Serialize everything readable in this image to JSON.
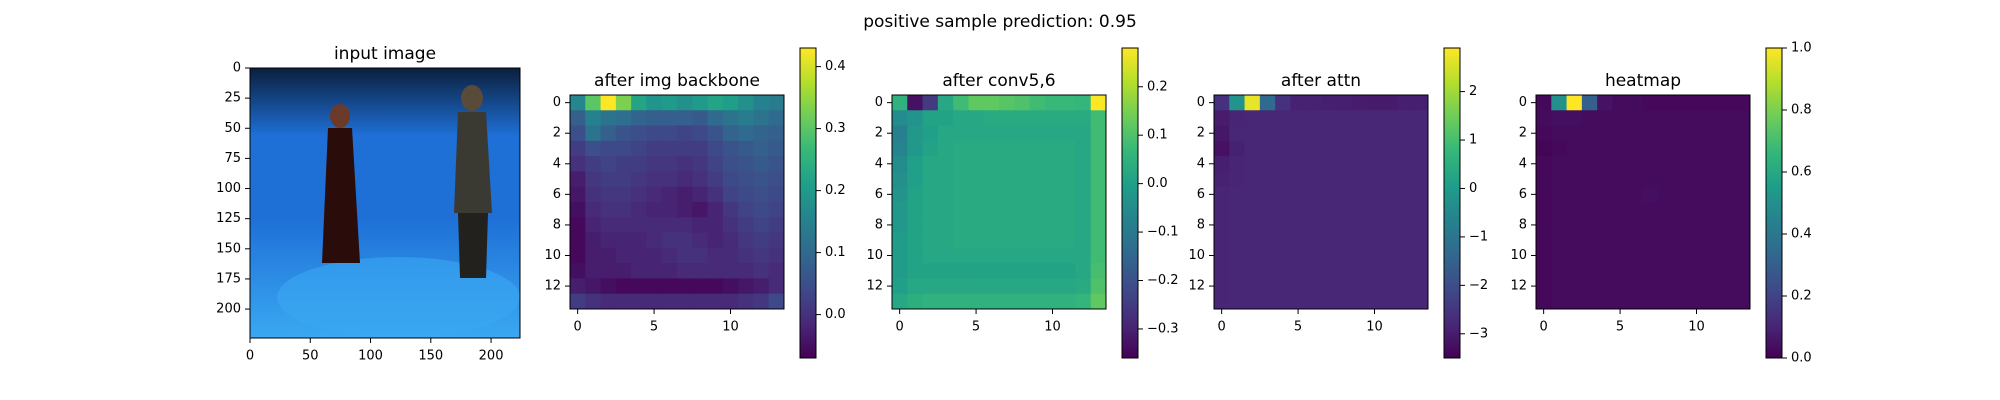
{
  "figure": {
    "suptitle": "positive sample     prediction: 0.95"
  },
  "colormap": "viridis",
  "chart_data": [
    {
      "type": "image",
      "title": "input image",
      "x_ticks": [
        "0",
        "50",
        "100",
        "150",
        "200"
      ],
      "y_ticks": [
        "0",
        "25",
        "50",
        "75",
        "100",
        "125",
        "150",
        "175",
        "200"
      ],
      "xlim": [
        0,
        224
      ],
      "ylim": [
        224,
        0
      ],
      "scene": {
        "background": "#1e6fd6",
        "floor": "#3aa8f2",
        "ceiling": "#0b1f3d"
      }
    },
    {
      "type": "heatmap",
      "title": "after img backbone",
      "x_ticks": [
        "0",
        "5",
        "10"
      ],
      "y_ticks": [
        "0",
        "2",
        "4",
        "6",
        "8",
        "10",
        "12"
      ],
      "colorbar": {
        "vmin": -0.07,
        "vmax": 0.43,
        "ticks": [
          "0.0",
          "0.1",
          "0.2",
          "0.3",
          "0.4"
        ],
        "tick_values": [
          0.0,
          0.1,
          0.2,
          0.3,
          0.4
        ]
      },
      "grid_size": 14,
      "rows": [
        [
          0.16,
          0.3,
          0.43,
          0.33,
          0.22,
          0.19,
          0.2,
          0.18,
          0.2,
          0.22,
          0.21,
          0.18,
          0.15,
          0.14
        ],
        [
          0.08,
          0.15,
          0.12,
          0.11,
          0.09,
          0.08,
          0.08,
          0.08,
          0.07,
          0.1,
          0.12,
          0.14,
          0.12,
          0.1
        ],
        [
          0.05,
          0.12,
          0.08,
          0.06,
          0.05,
          0.04,
          0.04,
          0.03,
          0.04,
          0.06,
          0.09,
          0.1,
          0.09,
          0.08
        ],
        [
          0.02,
          0.05,
          0.04,
          0.04,
          0.03,
          0.02,
          0.02,
          0.02,
          0.02,
          0.04,
          0.06,
          0.07,
          0.08,
          0.07
        ],
        [
          0.0,
          0.02,
          0.03,
          0.02,
          0.02,
          0.01,
          0.01,
          0.0,
          0.01,
          0.03,
          0.05,
          0.06,
          0.07,
          0.06
        ],
        [
          -0.03,
          0.01,
          0.02,
          0.02,
          0.01,
          0.0,
          0.0,
          -0.01,
          0.0,
          0.02,
          0.04,
          0.05,
          0.06,
          0.05
        ],
        [
          -0.04,
          0.0,
          0.01,
          0.01,
          0.0,
          -0.01,
          -0.02,
          -0.03,
          -0.02,
          0.0,
          0.03,
          0.04,
          0.05,
          0.04
        ],
        [
          -0.05,
          -0.01,
          0.0,
          0.0,
          -0.01,
          -0.02,
          -0.02,
          -0.03,
          -0.04,
          -0.02,
          0.01,
          0.03,
          0.04,
          0.03
        ],
        [
          -0.06,
          -0.02,
          -0.01,
          -0.01,
          -0.01,
          -0.01,
          -0.01,
          -0.01,
          -0.02,
          -0.02,
          0.0,
          0.02,
          0.03,
          0.02
        ],
        [
          -0.06,
          -0.03,
          -0.02,
          -0.02,
          -0.02,
          -0.01,
          0.0,
          0.0,
          -0.01,
          -0.02,
          -0.01,
          0.01,
          0.02,
          0.01
        ],
        [
          -0.06,
          -0.03,
          -0.03,
          -0.02,
          -0.02,
          -0.02,
          -0.01,
          0.0,
          0.0,
          -0.01,
          -0.01,
          0.0,
          0.01,
          0.0
        ],
        [
          -0.05,
          -0.03,
          -0.03,
          -0.03,
          -0.02,
          -0.02,
          -0.02,
          -0.01,
          -0.01,
          -0.01,
          -0.01,
          -0.01,
          0.0,
          -0.01
        ],
        [
          -0.03,
          -0.04,
          -0.05,
          -0.06,
          -0.06,
          -0.06,
          -0.06,
          -0.06,
          -0.06,
          -0.06,
          -0.05,
          -0.04,
          -0.03,
          -0.01
        ],
        [
          0.02,
          0.0,
          -0.01,
          -0.01,
          -0.01,
          -0.01,
          -0.01,
          -0.01,
          -0.01,
          -0.01,
          -0.01,
          0.0,
          0.01,
          0.04
        ]
      ]
    },
    {
      "type": "heatmap",
      "title": "after conv5,6",
      "x_ticks": [
        "0",
        "5",
        "10"
      ],
      "y_ticks": [
        "0",
        "2",
        "4",
        "6",
        "8",
        "10",
        "12"
      ],
      "colorbar": {
        "vmin": -0.36,
        "vmax": 0.28,
        "ticks": [
          "0.2",
          "0.1",
          "0.0",
          "−0.1",
          "−0.2",
          "−0.3"
        ],
        "tick_values": [
          0.2,
          0.1,
          0.0,
          -0.1,
          -0.2,
          -0.3
        ]
      },
      "grid_size": 14,
      "rows": [
        [
          0.05,
          -0.33,
          -0.25,
          0.02,
          0.08,
          0.12,
          0.12,
          0.11,
          0.1,
          0.08,
          0.07,
          0.07,
          0.06,
          0.28
        ],
        [
          -0.05,
          -0.03,
          0.01,
          0.01,
          0.02,
          0.02,
          0.03,
          0.03,
          0.03,
          0.03,
          0.03,
          0.03,
          0.03,
          0.08
        ],
        [
          -0.08,
          -0.02,
          0.0,
          0.02,
          0.02,
          0.02,
          0.02,
          0.02,
          0.02,
          0.02,
          0.02,
          0.02,
          0.02,
          0.08
        ],
        [
          -0.07,
          -0.02,
          0.01,
          0.02,
          0.03,
          0.03,
          0.03,
          0.03,
          0.03,
          0.03,
          0.03,
          0.03,
          0.02,
          0.08
        ],
        [
          -0.05,
          0.0,
          0.02,
          0.02,
          0.03,
          0.03,
          0.03,
          0.03,
          0.03,
          0.03,
          0.03,
          0.03,
          0.02,
          0.08
        ],
        [
          -0.04,
          0.0,
          0.02,
          0.02,
          0.03,
          0.03,
          0.03,
          0.03,
          0.03,
          0.03,
          0.03,
          0.03,
          0.02,
          0.08
        ],
        [
          -0.03,
          0.01,
          0.02,
          0.02,
          0.03,
          0.03,
          0.03,
          0.03,
          0.03,
          0.03,
          0.03,
          0.03,
          0.02,
          0.08
        ],
        [
          -0.02,
          0.01,
          0.02,
          0.02,
          0.03,
          0.03,
          0.03,
          0.03,
          0.03,
          0.03,
          0.03,
          0.03,
          0.02,
          0.08
        ],
        [
          -0.02,
          0.01,
          0.02,
          0.02,
          0.03,
          0.03,
          0.03,
          0.03,
          0.03,
          0.03,
          0.03,
          0.03,
          0.02,
          0.08
        ],
        [
          -0.01,
          0.01,
          0.02,
          0.02,
          0.03,
          0.03,
          0.03,
          0.03,
          0.03,
          0.03,
          0.03,
          0.03,
          0.02,
          0.08
        ],
        [
          -0.01,
          0.01,
          0.02,
          0.02,
          0.02,
          0.02,
          0.02,
          0.02,
          0.02,
          0.02,
          0.02,
          0.02,
          0.02,
          0.08
        ],
        [
          -0.01,
          0.01,
          0.01,
          0.01,
          0.01,
          0.01,
          0.01,
          0.01,
          0.01,
          0.01,
          0.01,
          0.01,
          0.02,
          0.09
        ],
        [
          0.0,
          0.02,
          0.02,
          0.02,
          0.02,
          0.02,
          0.02,
          0.02,
          0.02,
          0.02,
          0.02,
          0.02,
          0.03,
          0.1
        ],
        [
          0.02,
          0.04,
          0.05,
          0.05,
          0.05,
          0.05,
          0.05,
          0.05,
          0.05,
          0.05,
          0.05,
          0.05,
          0.06,
          0.12
        ]
      ]
    },
    {
      "type": "heatmap",
      "title": "after attn",
      "x_ticks": [
        "0",
        "5",
        "10"
      ],
      "y_ticks": [
        "0",
        "2",
        "4",
        "6",
        "8",
        "10",
        "12"
      ],
      "colorbar": {
        "vmin": -3.5,
        "vmax": 2.9,
        "ticks": [
          "2",
          "1",
          "0",
          "−1",
          "−2",
          "−3"
        ],
        "tick_values": [
          2,
          1,
          0,
          -1,
          -2,
          -3
        ]
      },
      "grid_size": 14,
      "rows": [
        [
          -2.6,
          -0.2,
          2.7,
          -1.3,
          -2.6,
          -2.9,
          -2.9,
          -2.95,
          -2.95,
          -3.0,
          -3.05,
          -3.05,
          -2.95,
          -2.95
        ],
        [
          -3.0,
          -2.85,
          -2.8,
          -2.8,
          -2.8,
          -2.8,
          -2.8,
          -2.8,
          -2.8,
          -2.8,
          -2.8,
          -2.8,
          -2.8,
          -2.8
        ],
        [
          -3.1,
          -2.8,
          -2.8,
          -2.8,
          -2.8,
          -2.8,
          -2.8,
          -2.8,
          -2.8,
          -2.8,
          -2.8,
          -2.8,
          -2.8,
          -2.8
        ],
        [
          -3.2,
          -2.9,
          -2.8,
          -2.8,
          -2.8,
          -2.8,
          -2.8,
          -2.8,
          -2.8,
          -2.8,
          -2.8,
          -2.8,
          -2.8,
          -2.8
        ],
        [
          -2.95,
          -2.85,
          -2.8,
          -2.8,
          -2.8,
          -2.8,
          -2.8,
          -2.8,
          -2.8,
          -2.8,
          -2.8,
          -2.8,
          -2.8,
          -2.8
        ],
        [
          -2.9,
          -2.85,
          -2.8,
          -2.8,
          -2.8,
          -2.8,
          -2.8,
          -2.8,
          -2.8,
          -2.8,
          -2.8,
          -2.8,
          -2.8,
          -2.8
        ],
        [
          -2.85,
          -2.8,
          -2.8,
          -2.8,
          -2.8,
          -2.8,
          -2.8,
          -2.8,
          -2.8,
          -2.8,
          -2.8,
          -2.8,
          -2.8,
          -2.8
        ],
        [
          -2.85,
          -2.8,
          -2.8,
          -2.8,
          -2.8,
          -2.8,
          -2.8,
          -2.8,
          -2.8,
          -2.8,
          -2.8,
          -2.8,
          -2.8,
          -2.8
        ],
        [
          -2.85,
          -2.8,
          -2.8,
          -2.8,
          -2.8,
          -2.8,
          -2.8,
          -2.8,
          -2.8,
          -2.8,
          -2.8,
          -2.8,
          -2.8,
          -2.8
        ],
        [
          -2.85,
          -2.8,
          -2.8,
          -2.8,
          -2.8,
          -2.8,
          -2.8,
          -2.8,
          -2.8,
          -2.8,
          -2.8,
          -2.8,
          -2.8,
          -2.8
        ],
        [
          -2.85,
          -2.8,
          -2.8,
          -2.8,
          -2.8,
          -2.8,
          -2.8,
          -2.8,
          -2.8,
          -2.8,
          -2.8,
          -2.8,
          -2.8,
          -2.8
        ],
        [
          -2.85,
          -2.8,
          -2.8,
          -2.8,
          -2.8,
          -2.8,
          -2.8,
          -2.8,
          -2.8,
          -2.8,
          -2.8,
          -2.8,
          -2.8,
          -2.8
        ],
        [
          -2.85,
          -2.8,
          -2.8,
          -2.8,
          -2.8,
          -2.8,
          -2.8,
          -2.8,
          -2.8,
          -2.8,
          -2.8,
          -2.8,
          -2.8,
          -2.8
        ],
        [
          -2.85,
          -2.8,
          -2.8,
          -2.8,
          -2.8,
          -2.8,
          -2.8,
          -2.8,
          -2.8,
          -2.8,
          -2.8,
          -2.8,
          -2.8,
          -2.8
        ]
      ]
    },
    {
      "type": "heatmap",
      "title": "heatmap",
      "x_ticks": [
        "0",
        "5",
        "10"
      ],
      "y_ticks": [
        "0",
        "2",
        "4",
        "6",
        "8",
        "10",
        "12"
      ],
      "colorbar": {
        "vmin": 0.0,
        "vmax": 1.0,
        "ticks": [
          "1.0",
          "0.8",
          "0.6",
          "0.4",
          "0.2",
          "0.0"
        ],
        "tick_values": [
          1.0,
          0.8,
          0.6,
          0.4,
          0.2,
          0.0
        ]
      },
      "grid_size": 14,
      "rows": [
        [
          0.02,
          0.5,
          1.0,
          0.3,
          0.05,
          0.03,
          0.03,
          0.02,
          0.02,
          0.02,
          0.02,
          0.02,
          0.02,
          0.02
        ],
        [
          0.03,
          0.04,
          0.04,
          0.03,
          0.03,
          0.03,
          0.03,
          0.03,
          0.03,
          0.03,
          0.03,
          0.03,
          0.03,
          0.03
        ],
        [
          0.02,
          0.03,
          0.03,
          0.03,
          0.03,
          0.03,
          0.03,
          0.03,
          0.03,
          0.03,
          0.03,
          0.03,
          0.03,
          0.03
        ],
        [
          0.01,
          0.02,
          0.03,
          0.03,
          0.03,
          0.03,
          0.03,
          0.03,
          0.03,
          0.03,
          0.03,
          0.03,
          0.03,
          0.03
        ],
        [
          0.02,
          0.03,
          0.03,
          0.03,
          0.03,
          0.03,
          0.03,
          0.03,
          0.03,
          0.03,
          0.03,
          0.03,
          0.03,
          0.03
        ],
        [
          0.02,
          0.03,
          0.03,
          0.03,
          0.03,
          0.03,
          0.03,
          0.03,
          0.03,
          0.03,
          0.03,
          0.03,
          0.03,
          0.03
        ],
        [
          0.02,
          0.03,
          0.03,
          0.03,
          0.03,
          0.03,
          0.03,
          0.04,
          0.03,
          0.03,
          0.03,
          0.03,
          0.03,
          0.03
        ],
        [
          0.02,
          0.03,
          0.03,
          0.03,
          0.03,
          0.03,
          0.03,
          0.03,
          0.03,
          0.03,
          0.03,
          0.03,
          0.03,
          0.03
        ],
        [
          0.02,
          0.03,
          0.03,
          0.03,
          0.03,
          0.03,
          0.03,
          0.03,
          0.03,
          0.03,
          0.03,
          0.03,
          0.03,
          0.03
        ],
        [
          0.02,
          0.03,
          0.03,
          0.03,
          0.03,
          0.03,
          0.03,
          0.03,
          0.03,
          0.03,
          0.03,
          0.03,
          0.03,
          0.03
        ],
        [
          0.02,
          0.03,
          0.03,
          0.03,
          0.03,
          0.03,
          0.03,
          0.03,
          0.03,
          0.03,
          0.03,
          0.03,
          0.03,
          0.03
        ],
        [
          0.02,
          0.03,
          0.03,
          0.03,
          0.03,
          0.03,
          0.03,
          0.03,
          0.03,
          0.03,
          0.03,
          0.03,
          0.03,
          0.03
        ],
        [
          0.02,
          0.03,
          0.03,
          0.03,
          0.03,
          0.03,
          0.03,
          0.03,
          0.03,
          0.03,
          0.03,
          0.03,
          0.03,
          0.03
        ],
        [
          0.02,
          0.03,
          0.03,
          0.03,
          0.03,
          0.03,
          0.03,
          0.03,
          0.03,
          0.03,
          0.03,
          0.03,
          0.03,
          0.03
        ]
      ]
    }
  ]
}
